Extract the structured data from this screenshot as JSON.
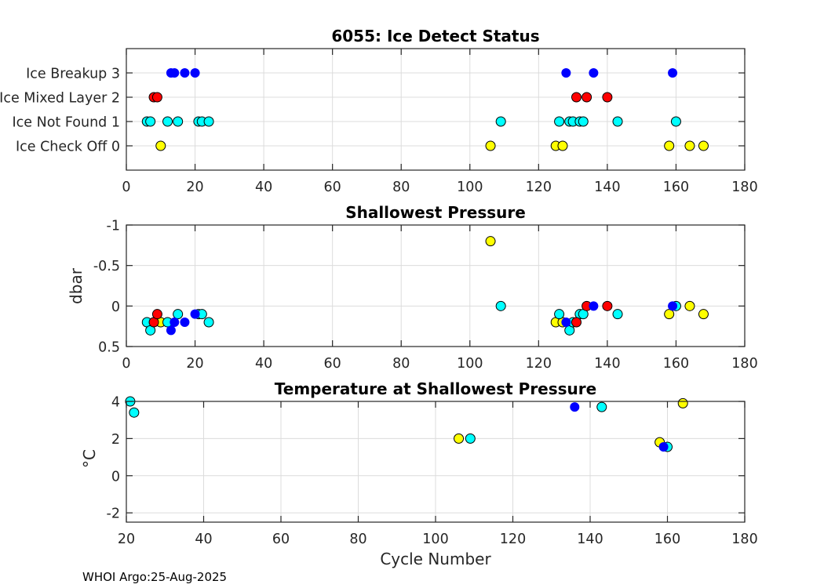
{
  "figure": {
    "footer": "WHOI Argo:25-Aug-2025"
  },
  "colors": {
    "status_0": "#ffff00",
    "status_1": "#00ffff",
    "status_2": "#ff0000",
    "status_3": "#0000ff",
    "marker_edge": "#000000"
  },
  "chart_data": [
    {
      "type": "scatter",
      "title": "6055: Ice Detect Status",
      "xlabel": "",
      "ylabel": "",
      "xlim": [
        0,
        180
      ],
      "ylim": [
        -1,
        4
      ],
      "y_reversed": false,
      "grid": true,
      "xticks": [
        0,
        20,
        40,
        60,
        80,
        100,
        120,
        140,
        160,
        180
      ],
      "yticks": [
        0,
        1,
        2,
        3
      ],
      "ytick_labels": [
        "Ice Check Off 0",
        "Ice Not Found 1",
        "Ice Mixed Layer 2",
        "Ice Breakup 3"
      ],
      "series": [
        {
          "name": "Ice Check Off",
          "status": 0,
          "points": [
            [
              10,
              0
            ],
            [
              106,
              0
            ],
            [
              125,
              0
            ],
            [
              127,
              0
            ],
            [
              158,
              0
            ],
            [
              164,
              0
            ],
            [
              168,
              0
            ]
          ]
        },
        {
          "name": "Ice Not Found",
          "status": 1,
          "points": [
            [
              6,
              1
            ],
            [
              7,
              1
            ],
            [
              12,
              1
            ],
            [
              15,
              1
            ],
            [
              21,
              1
            ],
            [
              22,
              1
            ],
            [
              24,
              1
            ],
            [
              109,
              1
            ],
            [
              126,
              1
            ],
            [
              129,
              1
            ],
            [
              130,
              1
            ],
            [
              132,
              1
            ],
            [
              133,
              1
            ],
            [
              143,
              1
            ],
            [
              160,
              1
            ]
          ]
        },
        {
          "name": "Ice Mixed Layer",
          "status": 2,
          "points": [
            [
              8,
              2
            ],
            [
              9,
              2
            ],
            [
              131,
              2
            ],
            [
              134,
              2
            ],
            [
              140,
              2
            ]
          ]
        },
        {
          "name": "Ice Breakup",
          "status": 3,
          "points": [
            [
              13,
              3
            ],
            [
              14,
              3
            ],
            [
              17,
              3
            ],
            [
              20,
              3
            ],
            [
              128,
              3
            ],
            [
              136,
              3
            ],
            [
              159,
              3
            ]
          ]
        }
      ]
    },
    {
      "type": "scatter",
      "title": "Shallowest Pressure",
      "xlabel": "",
      "ylabel": "dbar",
      "xlim": [
        0,
        180
      ],
      "ylim": [
        -1,
        0.5
      ],
      "y_reversed": true,
      "grid": true,
      "xticks": [
        0,
        20,
        40,
        60,
        80,
        100,
        120,
        140,
        160,
        180
      ],
      "yticks": [
        -1,
        -0.5,
        0,
        0.5
      ],
      "ytick_labels": [
        "-1",
        "-0.5",
        "0",
        "0.5"
      ],
      "series": [
        {
          "name": "Ice Check Off",
          "status": 0,
          "points": [
            [
              10,
              0.2
            ],
            [
              106,
              -0.8
            ],
            [
              125,
              0.2
            ],
            [
              127,
              0.2
            ],
            [
              158,
              0.1
            ],
            [
              164,
              0
            ],
            [
              168,
              0.1
            ]
          ]
        },
        {
          "name": "Ice Not Found",
          "status": 1,
          "points": [
            [
              6,
              0.2
            ],
            [
              7,
              0.3
            ],
            [
              12,
              0.2
            ],
            [
              15,
              0.1
            ],
            [
              21,
              0.1
            ],
            [
              22,
              0.1
            ],
            [
              24,
              0.2
            ],
            [
              109,
              0
            ],
            [
              126,
              0.1
            ],
            [
              129,
              0.3
            ],
            [
              130,
              0.2
            ],
            [
              132,
              0.1
            ],
            [
              133,
              0.1
            ],
            [
              143,
              0.1
            ],
            [
              160,
              0
            ]
          ]
        },
        {
          "name": "Ice Mixed Layer",
          "status": 2,
          "points": [
            [
              8,
              0.2
            ],
            [
              9,
              0.1
            ],
            [
              131,
              0.2
            ],
            [
              134,
              0
            ],
            [
              140,
              0
            ]
          ]
        },
        {
          "name": "Ice Breakup",
          "status": 3,
          "points": [
            [
              13,
              0.3
            ],
            [
              14,
              0.2
            ],
            [
              17,
              0.2
            ],
            [
              20,
              0.1
            ],
            [
              128,
              0.2
            ],
            [
              136,
              0
            ],
            [
              159,
              0
            ]
          ]
        }
      ]
    },
    {
      "type": "scatter",
      "title": "Temperature at Shallowest Pressure",
      "xlabel": "Cycle Number",
      "ylabel": "°C",
      "xlim": [
        20,
        180
      ],
      "ylim": [
        -2.5,
        4
      ],
      "y_reversed": false,
      "grid": true,
      "xticks": [
        20,
        40,
        60,
        80,
        100,
        120,
        140,
        160,
        180
      ],
      "yticks": [
        -2,
        0,
        2,
        4
      ],
      "ytick_labels": [
        "-2",
        "0",
        "2",
        "4"
      ],
      "series": [
        {
          "name": "Ice Check Off",
          "status": 0,
          "points": [
            [
              106,
              2.0
            ],
            [
              158,
              1.8
            ],
            [
              164,
              3.9
            ]
          ]
        },
        {
          "name": "Ice Not Found",
          "status": 1,
          "points": [
            [
              21,
              4.0
            ],
            [
              22,
              3.4
            ],
            [
              109,
              2.0
            ],
            [
              143,
              3.7
            ],
            [
              160,
              1.55
            ]
          ]
        },
        {
          "name": "Ice Mixed Layer",
          "status": 2,
          "points": []
        },
        {
          "name": "Ice Breakup",
          "status": 3,
          "points": [
            [
              136,
              3.7
            ],
            [
              159,
              1.55
            ]
          ]
        }
      ]
    }
  ]
}
